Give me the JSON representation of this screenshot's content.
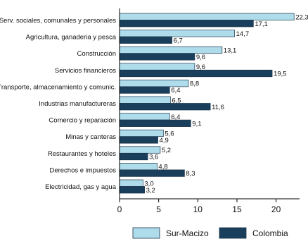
{
  "chart_data": {
    "type": "bar",
    "orientation": "horizontal",
    "categories": [
      "Serv. sociales, comunales y personales",
      "Agricultura, ganaderia y pesca",
      "Construcción",
      "Servicios financieros",
      "Transporte, almacenamiento y comunic.",
      "Industrias manufactureras",
      "Comercio y reparación",
      "Minas y canteras",
      "Restaurantes y hoteles",
      "Derechos e impuestos",
      "Electricidad, gas y agua"
    ],
    "series": [
      {
        "name": "Sur-Macizo",
        "color": "#aedcea",
        "values": [
          22.3,
          14.7,
          13.1,
          9.6,
          8.8,
          6.5,
          6.4,
          5.6,
          5.2,
          4.8,
          3.0
        ],
        "labels": [
          "22,3",
          "14,7",
          "13,1",
          "9,6",
          "8,8",
          "6,5",
          "6,4",
          "5,6",
          "5,2",
          "4,8",
          "3,0"
        ]
      },
      {
        "name": "Colombia",
        "color": "#1a3f5c",
        "values": [
          17.1,
          6.7,
          9.6,
          19.5,
          6.4,
          11.6,
          9.1,
          4.9,
          3.6,
          8.3,
          3.2
        ],
        "labels": [
          "17,1",
          "6,7",
          "9,6",
          "19,5",
          "6,4",
          "11,6",
          "9,1",
          "4,9",
          "3,6",
          "8,3",
          "3,2"
        ]
      }
    ],
    "xlim": [
      0,
      23
    ],
    "xticks": [
      0,
      5,
      10,
      15,
      20
    ],
    "xtick_labels": [
      "0",
      "5",
      "10",
      "15",
      "20"
    ],
    "grid": false,
    "legend_position": "bottom"
  }
}
